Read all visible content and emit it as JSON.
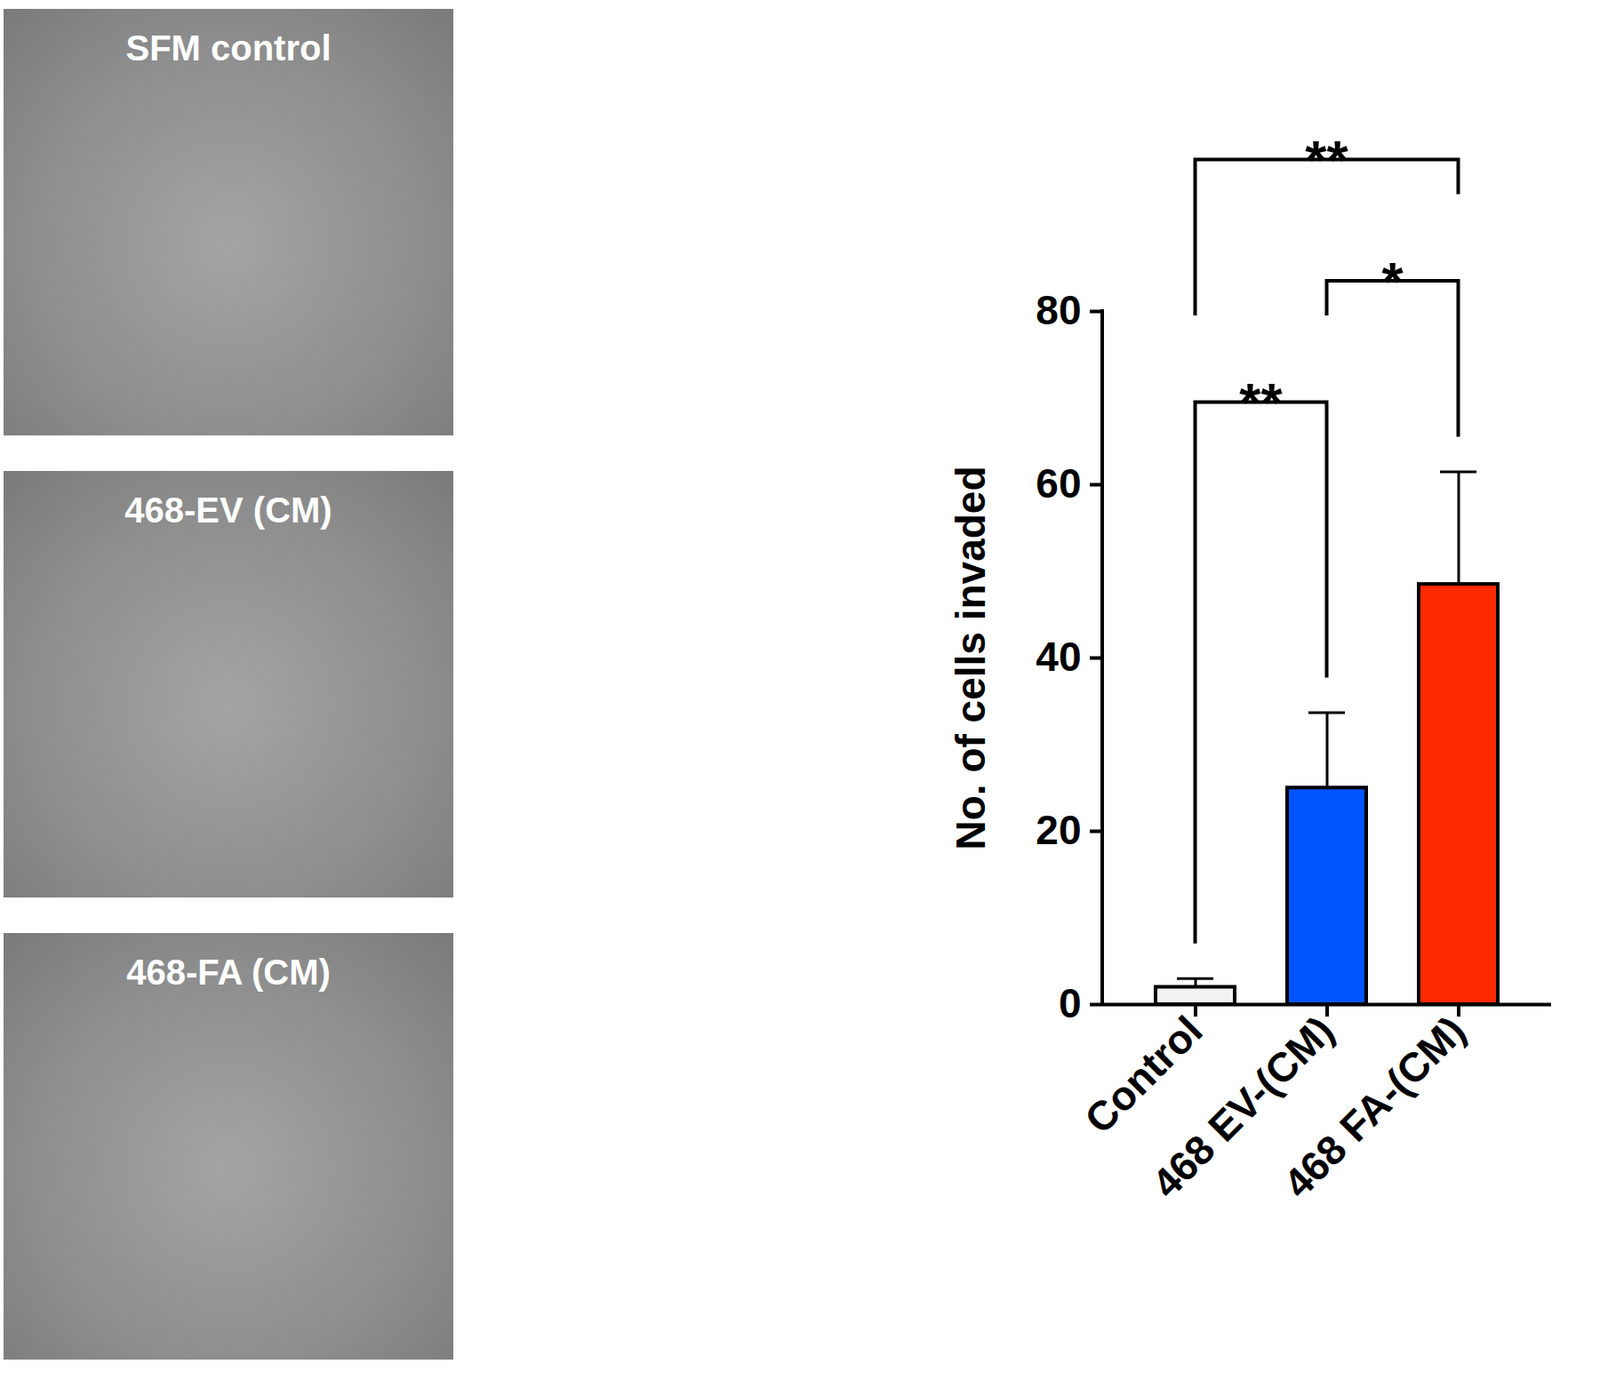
{
  "chart_data": {
    "type": "bar",
    "categories": [
      "Control",
      "468 EV-(CM)",
      "468 FA-(CM)"
    ],
    "values": [
      2,
      25,
      48.5
    ],
    "errors": [
      1,
      8.7,
      13
    ],
    "colors": [
      "#f2f2f2",
      "#0055ff",
      "#ff2a00"
    ],
    "y_label": "No. of cells invaded",
    "ylim": [
      0,
      80
    ],
    "yticks": [
      0,
      20,
      40,
      60,
      80
    ],
    "grid": false,
    "comparisons": [
      {
        "from": "Control",
        "to": "468 EV-(CM)",
        "label": "**"
      },
      {
        "from": "468 EV-(CM)",
        "to": "468 FA-(CM)",
        "label": "*"
      },
      {
        "from": "Control",
        "to": "468 FA-(CM)",
        "label": "**"
      }
    ]
  },
  "images": [
    {
      "label": "SFM control"
    },
    {
      "label": "468-EV (CM)"
    },
    {
      "label": "468-FA (CM)"
    }
  ]
}
